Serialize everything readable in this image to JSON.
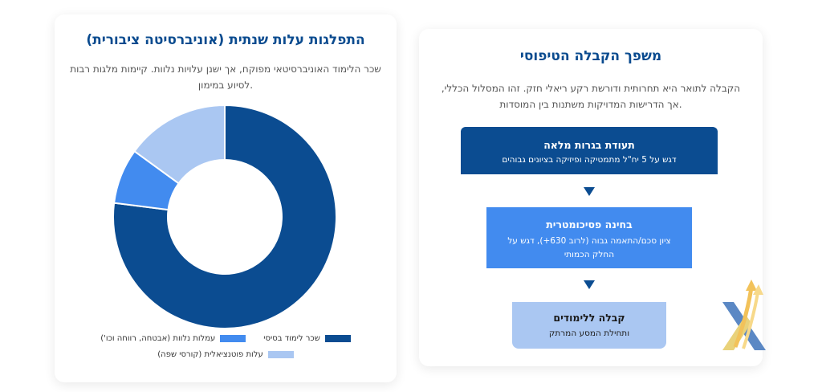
{
  "chart_card": {
    "title": "התפלגות עלות שנתית (אוניברסיטה ציבורית)",
    "description": "שכר הלימוד האוניברסיטאי מפוקח, אך ישנן עלויות נלוות. קיימות מלגות רבות לסיוע במימון."
  },
  "chart_data": {
    "type": "pie",
    "categories": [
      "שכר לימוד בסיסי",
      "עמלות נלוות (אבטחה, רווחה וכו')",
      "עלות פוטנציאלית (קורסי שפה)"
    ],
    "values": [
      77,
      8,
      15
    ],
    "colors": [
      "#0b4c91",
      "#428bef",
      "#aac7f2"
    ],
    "legend_position": "bottom"
  },
  "legend": {
    "item1": "שכר לימוד בסיסי",
    "item2": "עמלות נלוות (אבטחה, רווחה וכו')",
    "item3": "עלות פוטנציאלית (קורסי שפה)"
  },
  "funnel_card": {
    "title": "משפך הקבלה הטיפוסי",
    "description": "הקבלה לתואר היא תחרותית ודורשת רקע ריאלי חזק. זהו המסלול הכללי, אך הדרישות המדויקות משתנות בין המוסדות.",
    "steps": [
      {
        "title": "תעודת בגרות מלאה",
        "desc": "דגש על 5 יח\"ל מתמטיקה ופיזיקה בציונים גבוהים"
      },
      {
        "title": "בחינה פסיכומטרית",
        "desc": "ציון סכם/התאמה גבוה (לרוב 630+), דגש על החלק הכמותי"
      },
      {
        "title": "קבלה ללימודים",
        "desc": "ותחילת המסע המרתק"
      }
    ]
  },
  "colors": {
    "primary": "#0b4c91",
    "accent": "#428bef",
    "light": "#aac7f2"
  },
  "logo": {
    "icon": "x-arrows-logo-icon"
  }
}
